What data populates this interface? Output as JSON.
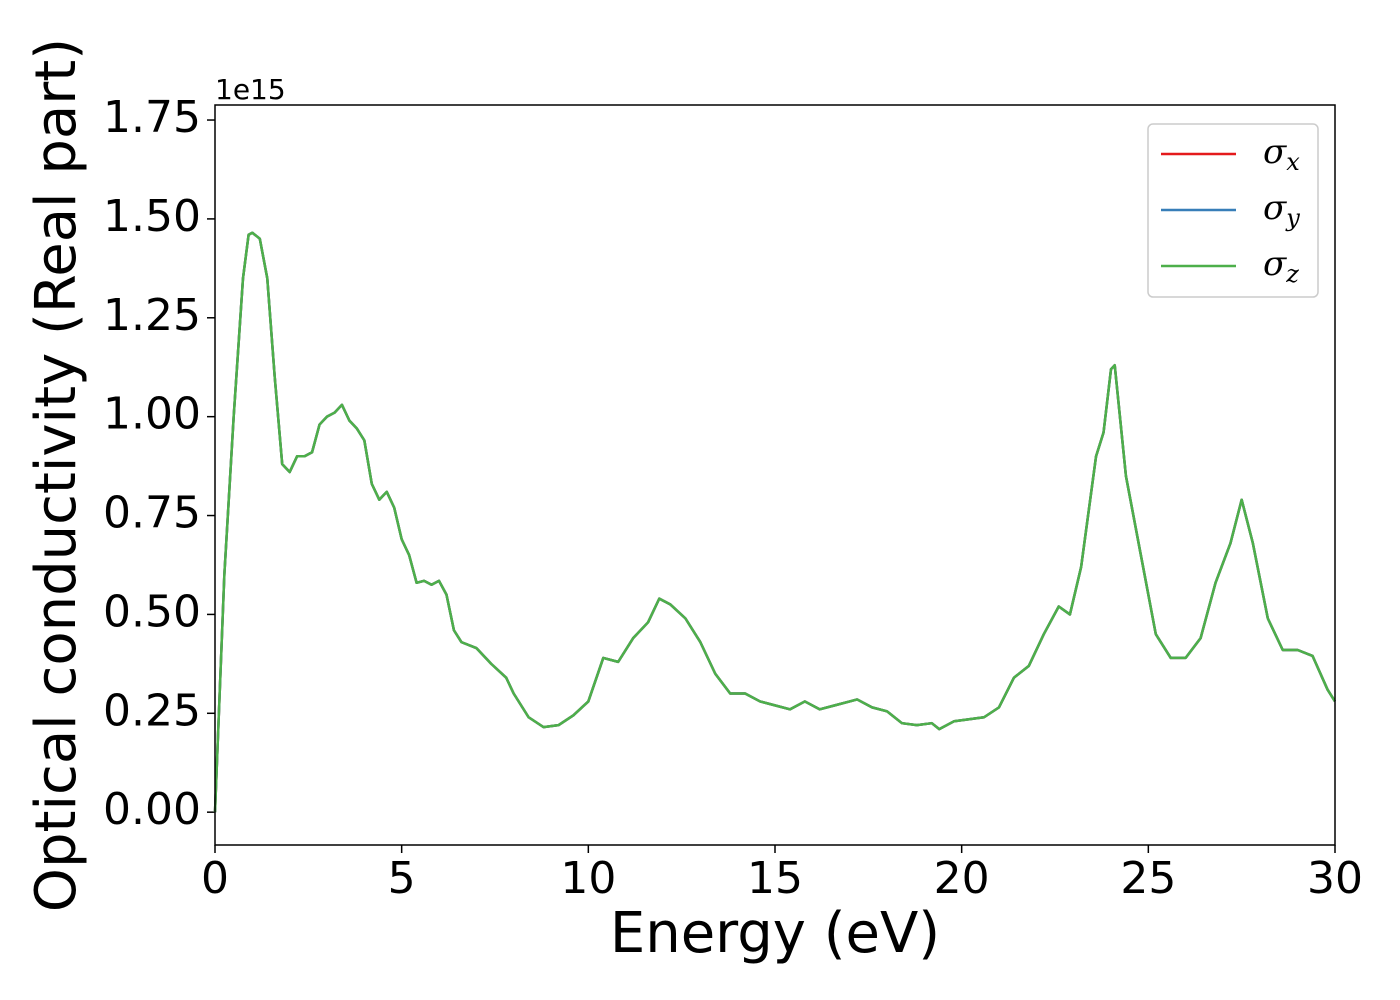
{
  "chart_data": {
    "type": "line",
    "xlabel": "Energy (eV)",
    "ylabel": "Optical conductivity (Real part)",
    "y_offset_label": "1e15",
    "xlim": [
      0,
      30
    ],
    "xticks": [
      0,
      5,
      10,
      15,
      20,
      25,
      30
    ],
    "ylim": [
      -0.083,
      1.788
    ],
    "yticks": [
      {
        "value": 0,
        "label": "0.00"
      },
      {
        "value": 0.25,
        "label": "0.25"
      },
      {
        "value": 0.5,
        "label": "0.50"
      },
      {
        "value": 0.75,
        "label": "0.75"
      },
      {
        "value": 1,
        "label": "1.00"
      },
      {
        "value": 1.25,
        "label": "1.25"
      },
      {
        "value": 1.5,
        "label": "1.50"
      },
      {
        "value": 1.75,
        "label": "1.75"
      }
    ],
    "legend": "upper right",
    "x": [
      0,
      0.25,
      0.5,
      0.75,
      0.9,
      1.0,
      1.2,
      1.4,
      1.6,
      1.8,
      2.0,
      2.2,
      2.4,
      2.6,
      2.8,
      3.0,
      3.2,
      3.4,
      3.6,
      3.8,
      4.0,
      4.2,
      4.4,
      4.6,
      4.8,
      5.0,
      5.2,
      5.4,
      5.6,
      5.8,
      6.0,
      6.2,
      6.4,
      6.6,
      7.0,
      7.4,
      7.8,
      8.0,
      8.4,
      8.8,
      9.2,
      9.6,
      10.0,
      10.4,
      10.8,
      11.2,
      11.6,
      11.9,
      12.2,
      12.6,
      13.0,
      13.4,
      13.8,
      14.2,
      14.6,
      15.0,
      15.4,
      15.8,
      16.2,
      16.6,
      17.0,
      17.2,
      17.6,
      18.0,
      18.4,
      18.8,
      19.2,
      19.4,
      19.8,
      20.2,
      20.6,
      21.0,
      21.4,
      21.8,
      22.2,
      22.6,
      22.9,
      23.2,
      23.6,
      23.8,
      24.0,
      24.1,
      24.4,
      24.8,
      25.2,
      25.6,
      26.0,
      26.4,
      26.8,
      27.2,
      27.5,
      27.8,
      28.2,
      28.6,
      29.0,
      29.4,
      29.8,
      30.0
    ],
    "series": [
      {
        "name": "σx",
        "color": "#e41a1c",
        "values": [
          0,
          0.6,
          1.0,
          1.35,
          1.46,
          1.465,
          1.45,
          1.35,
          1.1,
          0.88,
          0.86,
          0.9,
          0.9,
          0.91,
          0.98,
          1.0,
          1.01,
          1.03,
          0.99,
          0.97,
          0.94,
          0.83,
          0.79,
          0.81,
          0.77,
          0.69,
          0.65,
          0.58,
          0.585,
          0.575,
          0.585,
          0.55,
          0.46,
          0.43,
          0.415,
          0.375,
          0.34,
          0.3,
          0.24,
          0.215,
          0.22,
          0.245,
          0.28,
          0.39,
          0.38,
          0.44,
          0.48,
          0.54,
          0.525,
          0.49,
          0.43,
          0.35,
          0.3,
          0.3,
          0.28,
          0.27,
          0.26,
          0.28,
          0.26,
          0.27,
          0.28,
          0.285,
          0.265,
          0.255,
          0.225,
          0.22,
          0.225,
          0.21,
          0.23,
          0.235,
          0.24,
          0.265,
          0.34,
          0.37,
          0.45,
          0.52,
          0.5,
          0.62,
          0.9,
          0.96,
          1.12,
          1.13,
          0.85,
          0.65,
          0.45,
          0.39,
          0.39,
          0.44,
          0.58,
          0.68,
          0.79,
          0.68,
          0.49,
          0.41,
          0.41,
          0.395,
          0.31,
          0.28
        ]
      },
      {
        "name": "σy",
        "color": "#377eb8",
        "values": [
          0,
          0.6,
          1.0,
          1.35,
          1.46,
          1.465,
          1.45,
          1.35,
          1.1,
          0.88,
          0.86,
          0.9,
          0.9,
          0.91,
          0.98,
          1.0,
          1.01,
          1.03,
          0.99,
          0.97,
          0.94,
          0.83,
          0.79,
          0.81,
          0.77,
          0.69,
          0.65,
          0.58,
          0.585,
          0.575,
          0.585,
          0.55,
          0.46,
          0.43,
          0.415,
          0.375,
          0.34,
          0.3,
          0.24,
          0.215,
          0.22,
          0.245,
          0.28,
          0.39,
          0.38,
          0.44,
          0.48,
          0.54,
          0.525,
          0.49,
          0.43,
          0.35,
          0.3,
          0.3,
          0.28,
          0.27,
          0.26,
          0.28,
          0.26,
          0.27,
          0.28,
          0.285,
          0.265,
          0.255,
          0.225,
          0.22,
          0.225,
          0.21,
          0.23,
          0.235,
          0.24,
          0.265,
          0.34,
          0.37,
          0.45,
          0.52,
          0.5,
          0.62,
          0.9,
          0.96,
          1.12,
          1.13,
          0.85,
          0.65,
          0.45,
          0.39,
          0.39,
          0.44,
          0.58,
          0.68,
          0.79,
          0.68,
          0.49,
          0.41,
          0.41,
          0.395,
          0.31,
          0.28
        ]
      },
      {
        "name": "σz",
        "color": "#4daf4a",
        "values": [
          0,
          0.6,
          1.0,
          1.35,
          1.46,
          1.465,
          1.45,
          1.35,
          1.1,
          0.88,
          0.86,
          0.9,
          0.9,
          0.91,
          0.98,
          1.0,
          1.01,
          1.03,
          0.99,
          0.97,
          0.94,
          0.83,
          0.79,
          0.81,
          0.77,
          0.69,
          0.65,
          0.58,
          0.585,
          0.575,
          0.585,
          0.55,
          0.46,
          0.43,
          0.415,
          0.375,
          0.34,
          0.3,
          0.24,
          0.215,
          0.22,
          0.245,
          0.28,
          0.39,
          0.38,
          0.44,
          0.48,
          0.54,
          0.525,
          0.49,
          0.43,
          0.35,
          0.3,
          0.3,
          0.28,
          0.27,
          0.26,
          0.28,
          0.26,
          0.27,
          0.28,
          0.285,
          0.265,
          0.255,
          0.225,
          0.22,
          0.225,
          0.21,
          0.23,
          0.235,
          0.24,
          0.265,
          0.34,
          0.37,
          0.45,
          0.52,
          0.5,
          0.62,
          0.9,
          0.96,
          1.12,
          1.13,
          0.85,
          0.65,
          0.45,
          0.39,
          0.39,
          0.44,
          0.58,
          0.68,
          0.79,
          0.68,
          0.49,
          0.41,
          0.41,
          0.395,
          0.31,
          0.28
        ]
      }
    ]
  }
}
